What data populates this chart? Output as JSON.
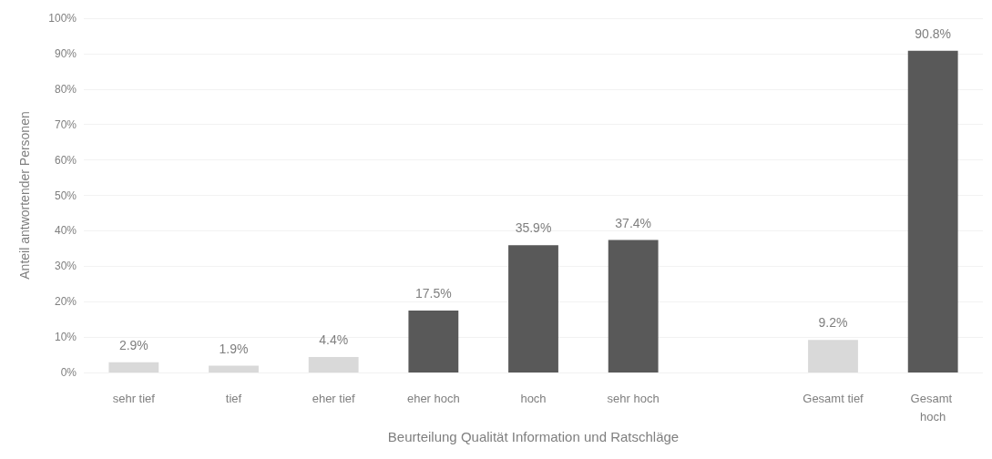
{
  "chart_data": {
    "type": "bar",
    "xlabel": "Beurteilung Qualität Information und Ratschläge",
    "ylabel": "Anteil antwortender Personen",
    "categories": [
      "sehr tief",
      "tief",
      "eher tief",
      "eher hoch",
      "hoch",
      "sehr hoch",
      null,
      "Gesamt tief",
      "Gesamt hoch"
    ],
    "values": [
      2.9,
      1.9,
      4.4,
      17.5,
      35.9,
      37.4,
      null,
      9.2,
      90.8
    ],
    "colors": [
      "#d9d9d9",
      "#d9d9d9",
      "#d9d9d9",
      "#595959",
      "#595959",
      "#595959",
      "#ffffff",
      "#d9d9d9",
      "#595959"
    ],
    "value_labels": [
      "2.9%",
      "1.9%",
      "4.4%",
      "17.5%",
      "35.9%",
      "37.4%",
      null,
      "9.2%",
      "90.8%"
    ],
    "ylim": [
      0,
      100
    ],
    "yticks": [
      {
        "value": 0,
        "label": "0%"
      },
      {
        "value": 10,
        "label": "10%"
      },
      {
        "value": 20,
        "label": "20%"
      },
      {
        "value": 30,
        "label": "30%"
      },
      {
        "value": 40,
        "label": "40%"
      },
      {
        "value": 50,
        "label": "50%"
      },
      {
        "value": 60,
        "label": "60%"
      },
      {
        "value": 70,
        "label": "70%"
      },
      {
        "value": 80,
        "label": "80%"
      },
      {
        "value": 90,
        "label": "90%"
      },
      {
        "value": 100,
        "label": "100%"
      }
    ],
    "grid": "y"
  }
}
